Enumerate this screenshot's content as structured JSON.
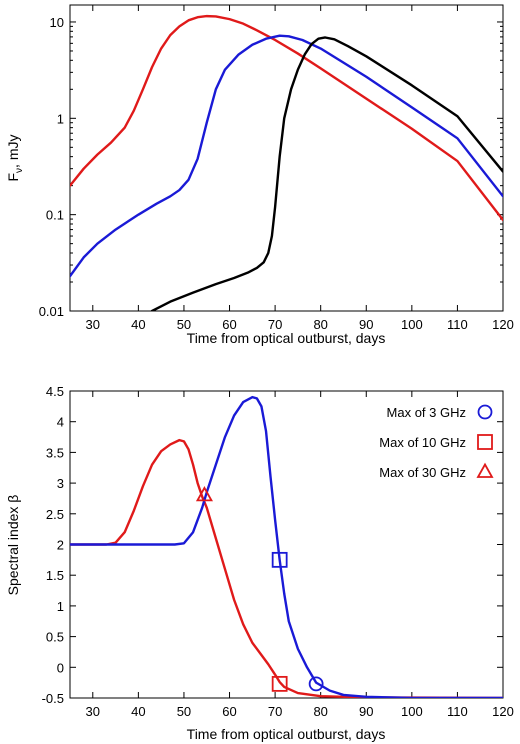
{
  "chart_data": [
    {
      "type": "line",
      "title": "",
      "xlabel": "Time from optical outburst, days",
      "ylabel": "F_ν, mJy",
      "ylabel_main": "F",
      "ylabel_sub": "ν",
      "ylabel_rest": ", mJy",
      "xlim": [
        25,
        120
      ],
      "ylim": [
        0.01,
        15
      ],
      "yscale": "log",
      "x_ticks": [
        30,
        40,
        50,
        60,
        70,
        80,
        90,
        100,
        110,
        120
      ],
      "x_tick_labels": [
        "30",
        "40",
        "50",
        "60",
        "70",
        "80",
        "90",
        "100",
        "110",
        "120"
      ],
      "y_ticks": [
        0.01,
        0.1,
        1,
        10
      ],
      "y_tick_labels": [
        "0.01",
        "0.1",
        "1",
        "10"
      ],
      "grid": false,
      "series": [
        {
          "color": "#e01a1a",
          "points": [
            [
              25,
              0.2
            ],
            [
              28,
              0.3
            ],
            [
              31,
              0.42
            ],
            [
              34,
              0.56
            ],
            [
              37,
              0.8
            ],
            [
              39,
              1.2
            ],
            [
              41,
              2.0
            ],
            [
              43,
              3.4
            ],
            [
              45,
              5.3
            ],
            [
              47,
              7.3
            ],
            [
              49,
              9.0
            ],
            [
              51,
              10.4
            ],
            [
              53,
              11.2
            ],
            [
              55,
              11.5
            ],
            [
              57,
              11.4
            ],
            [
              60,
              10.7
            ],
            [
              63,
              9.6
            ],
            [
              66,
              8.2
            ],
            [
              70,
              6.5
            ],
            [
              75,
              4.7
            ],
            [
              80,
              3.3
            ],
            [
              90,
              1.6
            ],
            [
              100,
              0.78
            ],
            [
              110,
              0.36
            ],
            [
              120,
              0.088
            ]
          ]
        },
        {
          "color": "#1a1ad6",
          "points": [
            [
              25,
              0.023
            ],
            [
              28,
              0.036
            ],
            [
              31,
              0.05
            ],
            [
              35,
              0.07
            ],
            [
              40,
              0.1
            ],
            [
              44,
              0.13
            ],
            [
              47,
              0.155
            ],
            [
              49,
              0.18
            ],
            [
              51,
              0.23
            ],
            [
              53,
              0.38
            ],
            [
              55,
              0.9
            ],
            [
              57,
              2.0
            ],
            [
              59,
              3.2
            ],
            [
              62,
              4.6
            ],
            [
              65,
              5.8
            ],
            [
              68,
              6.7
            ],
            [
              71,
              7.2
            ],
            [
              73,
              7.1
            ],
            [
              76,
              6.5
            ],
            [
              80,
              5.3
            ],
            [
              90,
              2.7
            ],
            [
              100,
              1.3
            ],
            [
              110,
              0.62
            ],
            [
              120,
              0.155
            ]
          ]
        },
        {
          "color": "#000000",
          "points": [
            [
              43,
              0.01
            ],
            [
              47,
              0.0125
            ],
            [
              52,
              0.0155
            ],
            [
              57,
              0.019
            ],
            [
              61,
              0.022
            ],
            [
              64,
              0.025
            ],
            [
              66,
              0.028
            ],
            [
              67.5,
              0.032
            ],
            [
              68.5,
              0.04
            ],
            [
              69.3,
              0.06
            ],
            [
              70,
              0.12
            ],
            [
              71,
              0.4
            ],
            [
              72,
              1.0
            ],
            [
              73.5,
              2.0
            ],
            [
              75,
              3.2
            ],
            [
              76.5,
              4.6
            ],
            [
              78,
              5.9
            ],
            [
              79.5,
              6.7
            ],
            [
              81,
              6.9
            ],
            [
              83,
              6.6
            ],
            [
              86,
              5.6
            ],
            [
              90,
              4.4
            ],
            [
              100,
              2.2
            ],
            [
              110,
              1.05
            ],
            [
              120,
              0.28
            ]
          ]
        }
      ]
    },
    {
      "type": "line",
      "title": "",
      "xlabel": "Time from optical outburst, days",
      "ylabel": "Spectral index β",
      "xlim": [
        25,
        120
      ],
      "ylim": [
        -0.5,
        4.5
      ],
      "x_ticks": [
        30,
        40,
        50,
        60,
        70,
        80,
        90,
        100,
        110,
        120
      ],
      "x_tick_labels": [
        "30",
        "40",
        "50",
        "60",
        "70",
        "80",
        "90",
        "100",
        "110",
        "120"
      ],
      "y_ticks": [
        -0.5,
        0,
        0.5,
        1,
        1.5,
        2,
        2.5,
        3,
        3.5,
        4,
        4.5
      ],
      "y_tick_labels": [
        "-0.5",
        "0",
        "0.5",
        "1",
        "1.5",
        "2",
        "2.5",
        "3",
        "3.5",
        "4",
        "4.5"
      ],
      "grid": false,
      "legend_position": "top-right",
      "series": [
        {
          "color": "#e01a1a",
          "points": [
            [
              25,
              2.0
            ],
            [
              33,
              2.0
            ],
            [
              35,
              2.03
            ],
            [
              37,
              2.2
            ],
            [
              39,
              2.55
            ],
            [
              41,
              2.95
            ],
            [
              43,
              3.3
            ],
            [
              45,
              3.52
            ],
            [
              47,
              3.63
            ],
            [
              49,
              3.7
            ],
            [
              50,
              3.68
            ],
            [
              51,
              3.55
            ],
            [
              52,
              3.3
            ],
            [
              53,
              3.0
            ],
            [
              54,
              2.78
            ],
            [
              55,
              2.6
            ],
            [
              57,
              2.1
            ],
            [
              59,
              1.6
            ],
            [
              61,
              1.1
            ],
            [
              63,
              0.7
            ],
            [
              65,
              0.4
            ],
            [
              67,
              0.2
            ],
            [
              68.5,
              0.05
            ],
            [
              70,
              -0.12
            ],
            [
              71,
              -0.24
            ],
            [
              72,
              -0.32
            ],
            [
              75,
              -0.42
            ],
            [
              80,
              -0.47
            ],
            [
              90,
              -0.49
            ],
            [
              120,
              -0.5
            ]
          ]
        },
        {
          "color": "#1a1ad6",
          "points": [
            [
              25,
              2.0
            ],
            [
              48,
              2.0
            ],
            [
              50,
              2.02
            ],
            [
              52,
              2.2
            ],
            [
              54,
              2.6
            ],
            [
              55,
              2.85
            ],
            [
              57,
              3.3
            ],
            [
              59,
              3.75
            ],
            [
              61,
              4.1
            ],
            [
              63,
              4.32
            ],
            [
              65,
              4.4
            ],
            [
              66,
              4.38
            ],
            [
              67,
              4.25
            ],
            [
              68,
              3.85
            ],
            [
              69,
              3.1
            ],
            [
              70,
              2.4
            ],
            [
              71,
              1.75
            ],
            [
              72,
              1.2
            ],
            [
              73,
              0.75
            ],
            [
              75,
              0.3
            ],
            [
              77,
              0.0
            ],
            [
              79,
              -0.25
            ],
            [
              82,
              -0.38
            ],
            [
              85,
              -0.45
            ],
            [
              90,
              -0.48
            ],
            [
              100,
              -0.5
            ],
            [
              120,
              -0.5
            ]
          ]
        }
      ],
      "legend": [
        {
          "label": "Max of 3 GHz",
          "marker": "circle",
          "color": "#1a1ad6"
        },
        {
          "label": "Max of 10 GHz",
          "marker": "square",
          "color": "#e01a1a"
        },
        {
          "label": "Max of 30 GHz",
          "marker": "triangle",
          "color": "#e01a1a"
        }
      ],
      "markers": [
        {
          "marker": "circle",
          "color": "#1a1ad6",
          "x": 79,
          "y": -0.27
        },
        {
          "marker": "square",
          "color": "#e01a1a",
          "x": 71,
          "y": -0.27
        },
        {
          "marker": "square",
          "color": "#1a1ad6",
          "x": 71,
          "y": 1.75
        },
        {
          "marker": "triangle",
          "color": "#e01a1a",
          "x": 54.5,
          "y": 2.8
        }
      ]
    }
  ]
}
